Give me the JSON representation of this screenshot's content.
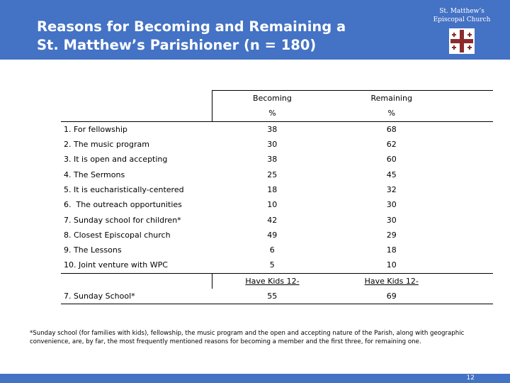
{
  "header": {
    "title_line1": "Reasons for Becoming and Remaining a",
    "title_line2": "St. Matthew’s Parishioner (n = 180)",
    "logo_line1": "St. Matthew’s",
    "logo_line2": "Episcopal Church",
    "bg_color": "#4472c4",
    "logo_icon": "cross-icon"
  },
  "table": {
    "col_becoming": "Becoming",
    "col_remaining": "Remaining",
    "pct_becoming": "%",
    "pct_remaining": "%",
    "rows": [
      {
        "label": "1. For fellowship",
        "becoming": "38",
        "remaining": "68"
      },
      {
        "label": "2. The music program",
        "becoming": "30",
        "remaining": "62"
      },
      {
        "label": "3. It is open and accepting",
        "becoming": "38",
        "remaining": "60"
      },
      {
        "label": "4. The Sermons",
        "becoming": "25",
        "remaining": "45"
      },
      {
        "label": "5. It is eucharistically-centered",
        "becoming": "18",
        "remaining": "32"
      },
      {
        "label": "6.  The outreach opportunities",
        "becoming": "10",
        "remaining": "30"
      },
      {
        "label": "7. Sunday school for children*",
        "becoming": "42",
        "remaining": "30"
      },
      {
        "label": "8. Closest Episcopal church",
        "becoming": "49",
        "remaining": "29"
      },
      {
        "label": "9. The Lessons",
        "becoming": "6",
        "remaining": "18"
      },
      {
        "label": "10. Joint venture with WPC",
        "becoming": "5",
        "remaining": "10"
      }
    ],
    "kids_becoming": "Have Kids 12-",
    "kids_remaining": "Have Kids 12-",
    "sunday_label": "7. Sunday School*",
    "sunday_becoming": "55",
    "sunday_remaining": "69"
  },
  "footnote": "*Sunday school (for families with kids), fellowship, the music program and the open and accepting nature of the Parish, along with geographic convenience, are, by far, the most frequently mentioned reasons for becoming a member and the first three, for remaining one.",
  "footer": {
    "page_number": "12"
  }
}
